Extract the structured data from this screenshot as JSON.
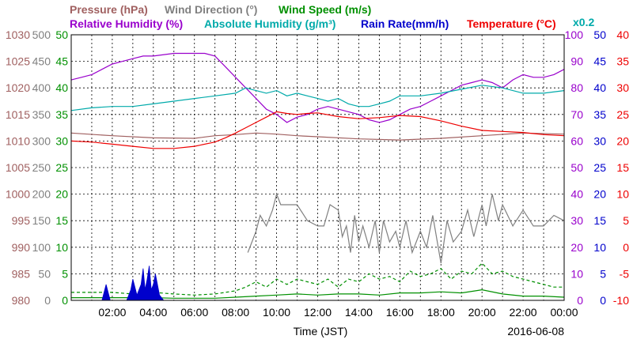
{
  "chart_data": {
    "type": "line",
    "date_label": "2016-06-08",
    "xlabel": "Time (JST)",
    "x_ticks": [
      "02:00",
      "04:00",
      "06:00",
      "08:00",
      "10:00",
      "12:00",
      "14:00",
      "16:00",
      "18:00",
      "20:00",
      "22:00",
      "00:00"
    ],
    "x_range_hours": [
      0,
      24
    ],
    "grid": true,
    "axes": [
      {
        "id": "pressure",
        "color": "#a06060",
        "ticks": [
          "1030",
          "1025",
          "1020",
          "1015",
          "1010",
          "1005",
          "1000",
          "995",
          "990",
          "985",
          "980"
        ],
        "range": [
          980,
          1030
        ]
      },
      {
        "id": "wind_direction",
        "color": "#808080",
        "ticks": [
          "500",
          "450",
          "400",
          "350",
          "300",
          "250",
          "200",
          "150",
          "100",
          "50",
          "0"
        ],
        "range": [
          0,
          500
        ]
      },
      {
        "id": "wind_speed",
        "color": "#009000",
        "ticks": [
          "50",
          "45",
          "40",
          "35",
          "30",
          "25",
          "20",
          "15",
          "10",
          "5",
          "0"
        ],
        "range": [
          0,
          50
        ]
      },
      {
        "id": "humidity",
        "color": "#9900cc",
        "ticks": [
          "100",
          "90",
          "80",
          "70",
          "60",
          "50",
          "40",
          "30",
          "20",
          "10",
          "0"
        ],
        "range": [
          0,
          100
        ]
      },
      {
        "id": "rain_rate",
        "color": "#0000cc",
        "ticks": [
          "50",
          "45",
          "40",
          "35",
          "30",
          "25",
          "20",
          "15",
          "10",
          "5",
          "0"
        ],
        "range": [
          0,
          50
        ]
      },
      {
        "id": "temperature",
        "color": "#ee0000",
        "ticks": [
          "40",
          "35",
          "30",
          "25",
          "20",
          "15",
          "10",
          "5",
          "0",
          "-5",
          "-10"
        ],
        "range": [
          -10,
          40
        ]
      }
    ],
    "legend": [
      {
        "text": "Pressure (hPa)",
        "color": "#a06060"
      },
      {
        "text": "Wind Direction (°)",
        "color": "#808080"
      },
      {
        "text": "Wind Speed (m/s)",
        "color": "#009000"
      },
      {
        "text": "Relative Humidity (%)",
        "color": "#9900cc"
      },
      {
        "text": "Absolute Humidity (g/m³)",
        "color": "#00aaaa"
      },
      {
        "text": "Rain Rate(mm/h)",
        "color": "#0000cc"
      },
      {
        "text": "Temperature (°C)",
        "color": "#ee0000"
      }
    ],
    "abs_humidity_scale": "x0.2",
    "series": [
      {
        "name": "Pressure (hPa)",
        "axis": "pressure",
        "color": "#a06060",
        "x": [
          0,
          2,
          4,
          6,
          7,
          8,
          9,
          10,
          11,
          12,
          14,
          16,
          18,
          20,
          22,
          24
        ],
        "y": [
          1011.5,
          1011.0,
          1010.6,
          1010.5,
          1011.0,
          1011.2,
          1011.5,
          1011.3,
          1011.0,
          1010.8,
          1010.4,
          1010.2,
          1010.5,
          1011.0,
          1011.5,
          1011.3
        ]
      },
      {
        "name": "Relative Humidity (%)",
        "axis": "humidity",
        "color": "#9900cc",
        "x": [
          0,
          0.5,
          1,
          1.5,
          2,
          2.5,
          3,
          3.5,
          4,
          5,
          6,
          6.5,
          7,
          7.5,
          8,
          8.5,
          9,
          9.5,
          10,
          10.5,
          11,
          11.5,
          12,
          12.5,
          13,
          13.5,
          14,
          14.5,
          15,
          15.5,
          16,
          16.5,
          17,
          17.5,
          18,
          18.5,
          19,
          19.5,
          20,
          20.5,
          21,
          21.5,
          22,
          22.5,
          23,
          23.5,
          24
        ],
        "y": [
          83,
          84,
          85,
          87,
          89,
          90,
          91,
          92,
          92,
          93,
          93,
          93,
          92,
          88,
          84,
          80,
          76,
          72,
          70,
          67,
          69,
          70,
          72,
          73,
          72,
          71,
          70,
          68,
          67,
          68,
          70,
          72,
          73,
          75,
          77,
          79,
          81,
          82,
          83,
          82,
          80,
          83,
          85,
          84,
          84,
          85,
          87
        ]
      },
      {
        "name": "Absolute Humidity (g/m³)",
        "axis": "humidity",
        "scale": 0.2,
        "color": "#00aaaa",
        "x": [
          0,
          1,
          2,
          3,
          4,
          5,
          6,
          7,
          8,
          8.5,
          9,
          9.5,
          10,
          10.5,
          11,
          11.5,
          12,
          12.5,
          13,
          13.5,
          14,
          14.5,
          15,
          15.5,
          16,
          17,
          18,
          19,
          20,
          21,
          22,
          23,
          24
        ],
        "y": [
          14.3,
          14.5,
          14.6,
          14.6,
          14.8,
          15.0,
          15.2,
          15.4,
          15.6,
          16.0,
          15.8,
          15.6,
          15.8,
          15.4,
          15.6,
          15.4,
          15.2,
          15.0,
          15.2,
          14.8,
          14.6,
          14.6,
          14.8,
          15.0,
          15.4,
          15.4,
          15.6,
          15.9,
          16.2,
          16.0,
          15.6,
          15.6,
          15.8
        ]
      },
      {
        "name": "Temperature (°C)",
        "axis": "temperature",
        "color": "#ee0000",
        "x": [
          0,
          1,
          2,
          3,
          4,
          5,
          6,
          7,
          7.5,
          8,
          8.5,
          9,
          9.5,
          10,
          10.5,
          11,
          11.5,
          12,
          13,
          14,
          15,
          16,
          17,
          18,
          19,
          20,
          21,
          22,
          23,
          24
        ],
        "y": [
          20.0,
          19.8,
          19.4,
          19.0,
          18.6,
          18.6,
          19.0,
          19.8,
          20.6,
          21.5,
          22.5,
          23.5,
          24.5,
          25.5,
          25.2,
          25.0,
          25.2,
          25.3,
          24.6,
          24.2,
          24.4,
          24.8,
          24.6,
          23.8,
          22.8,
          22.0,
          21.8,
          21.6,
          21.2,
          21.0
        ]
      },
      {
        "name": "Wind Direction (°)",
        "axis": "wind_direction",
        "color": "#808080",
        "x": [
          8.6,
          8.8,
          9.0,
          9.2,
          9.5,
          9.8,
          10.0,
          10.2,
          10.5,
          11.0,
          11.5,
          12.0,
          12.3,
          12.6,
          13.0,
          13.2,
          13.4,
          13.6,
          13.8,
          14.0,
          14.2,
          14.5,
          14.8,
          15.0,
          15.2,
          15.5,
          15.8,
          16.0,
          16.3,
          16.6,
          17.0,
          17.3,
          17.6,
          18.0,
          18.3,
          18.6,
          19.0,
          19.3,
          19.6,
          20.0,
          20.2,
          20.5,
          20.8,
          21.0,
          21.5,
          22.0,
          22.5,
          23.0,
          23.5,
          24.0
        ],
        "y": [
          90,
          110,
          130,
          160,
          140,
          170,
          200,
          180,
          180,
          180,
          150,
          140,
          140,
          180,
          170,
          120,
          140,
          90,
          160,
          110,
          140,
          100,
          150,
          90,
          150,
          110,
          130,
          100,
          150,
          90,
          130,
          100,
          160,
          70,
          150,
          110,
          130,
          170,
          120,
          180,
          140,
          200,
          150,
          180,
          140,
          170,
          140,
          140,
          160,
          150
        ]
      },
      {
        "name": "Wind Speed (m/s)",
        "axis": "wind_speed",
        "color": "#009000",
        "x": [
          0,
          1,
          2,
          3,
          4,
          5,
          6,
          7,
          8,
          9,
          10,
          11,
          12,
          13,
          14,
          15,
          16,
          17,
          18,
          19,
          20,
          21,
          22,
          23,
          24
        ],
        "y": [
          0.5,
          0.5,
          0.5,
          0.5,
          0.5,
          0.4,
          0.4,
          0.4,
          0.6,
          0.8,
          1.0,
          1.2,
          1.0,
          1.2,
          1.2,
          1.0,
          1.4,
          1.4,
          1.6,
          1.4,
          2.0,
          1.2,
          0.8,
          0.8,
          0.6
        ]
      },
      {
        "name": "Wind Gust (m/s)",
        "axis": "wind_speed",
        "color": "#009000",
        "dash": true,
        "x": [
          0,
          1,
          2,
          3,
          4,
          5,
          6,
          7,
          8,
          8.5,
          9,
          9.5,
          10,
          10.5,
          11,
          11.5,
          12,
          12.5,
          13,
          13.5,
          14,
          14.5,
          15,
          15.5,
          16,
          16.5,
          17,
          17.5,
          18,
          18.5,
          19,
          19.5,
          20,
          20.5,
          21,
          21.5,
          22,
          22.5,
          23,
          23.5,
          24
        ],
        "y": [
          1.5,
          1.5,
          1.5,
          1.2,
          1.5,
          1.2,
          1,
          1.2,
          1.8,
          2.5,
          3.5,
          2.5,
          4,
          3,
          4,
          3.5,
          3,
          4,
          2.5,
          4,
          3.5,
          5,
          4,
          4.5,
          3.5,
          5.5,
          4.5,
          5,
          6,
          4,
          5.5,
          5,
          7,
          5,
          5.5,
          4.5,
          4,
          3.5,
          3,
          2.5,
          2.5
        ]
      },
      {
        "name": "Rain Rate(mm/h)",
        "axis": "rain_rate",
        "color": "#0000cc",
        "x": [
          1.5,
          1.7,
          1.9,
          2.1,
          2.3,
          2.5,
          2.7,
          2.9,
          3.0,
          3.2,
          3.4,
          3.5,
          3.6,
          3.7,
          3.8,
          3.9,
          4.0,
          4.1,
          4.3,
          4.5
        ],
        "y": [
          0,
          3,
          0,
          0,
          0,
          0,
          0,
          2,
          4,
          1,
          3,
          6,
          2,
          4,
          6.5,
          2,
          3,
          5,
          1,
          0
        ]
      }
    ]
  }
}
